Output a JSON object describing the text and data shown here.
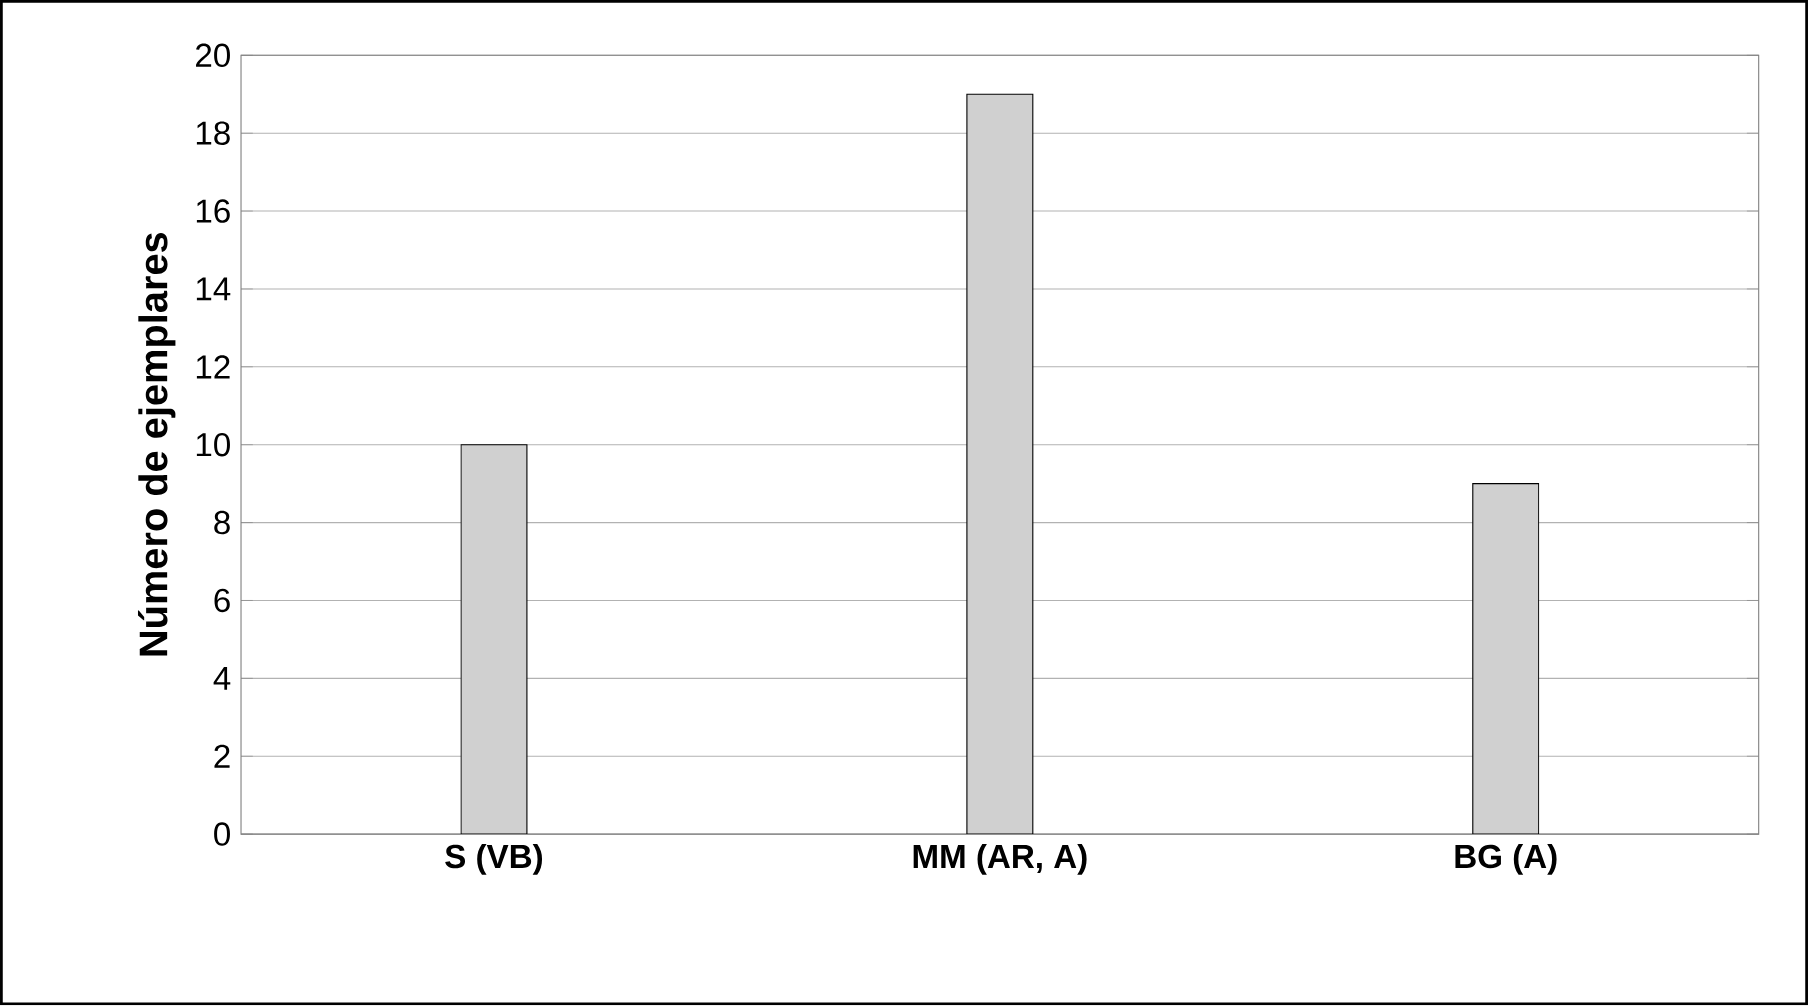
{
  "chart_data": {
    "type": "bar",
    "ylabel": "Número de ejemplares",
    "categories": [
      "S (VB)",
      "MM (AR, A)",
      "BG (A)"
    ],
    "values": [
      10,
      19,
      9
    ],
    "color": "#d0d0d0",
    "ylim": [
      0,
      20
    ],
    "yticks": [
      0,
      2,
      4,
      6,
      8,
      10,
      12,
      14,
      16,
      18,
      20
    ],
    "grid": "y"
  }
}
